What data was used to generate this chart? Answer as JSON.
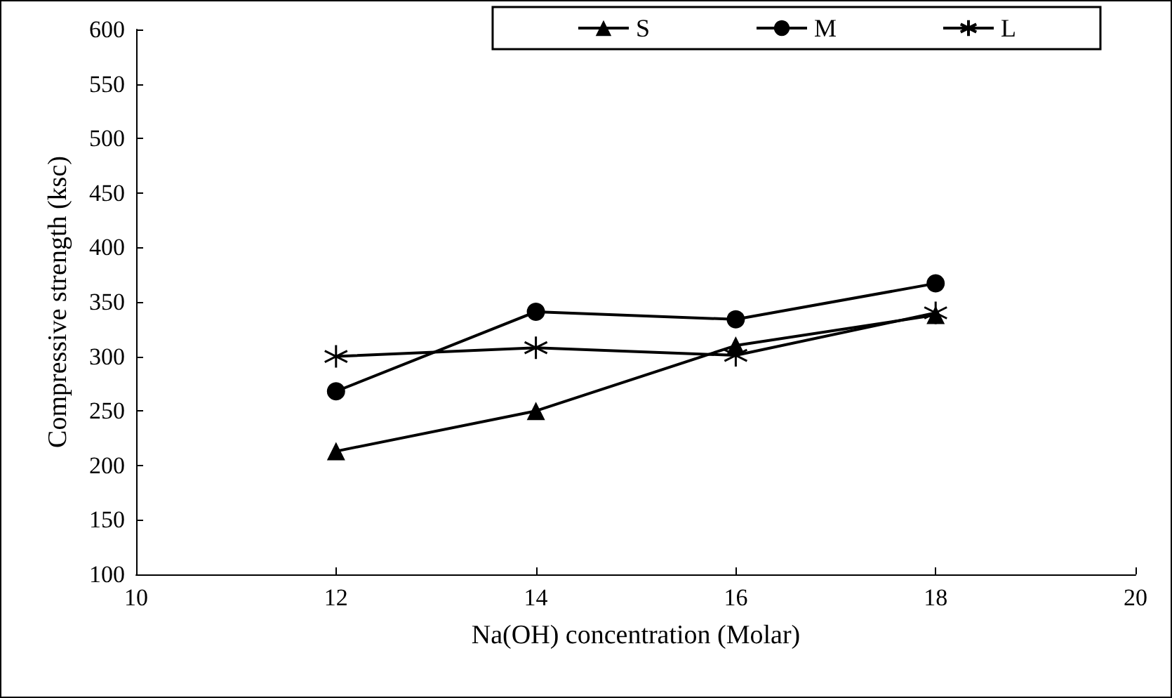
{
  "chart_data": {
    "type": "line",
    "xlabel": "Na(OH) concentration (Molar)",
    "ylabel": "Compressive strength (ksc)",
    "x": [
      12,
      14,
      16,
      18
    ],
    "series": [
      {
        "name": "S",
        "color": "#000000",
        "marker": "triangle",
        "values": [
          213,
          250,
          310,
          338
        ]
      },
      {
        "name": "M",
        "color": "#000000",
        "marker": "circle",
        "values": [
          268,
          341,
          334,
          367
        ]
      },
      {
        "name": "L",
        "color": "#000000",
        "marker": "cross",
        "values": [
          300,
          308,
          301,
          340
        ]
      }
    ],
    "xlim": [
      10,
      20
    ],
    "xticks": [
      10,
      12,
      14,
      16,
      18,
      20
    ],
    "ylim": [
      100,
      600
    ],
    "yticks": [
      100,
      150,
      200,
      250,
      300,
      350,
      400,
      450,
      500,
      550,
      600
    ],
    "grid": false,
    "legend": "top right",
    "line_style": "solid"
  }
}
